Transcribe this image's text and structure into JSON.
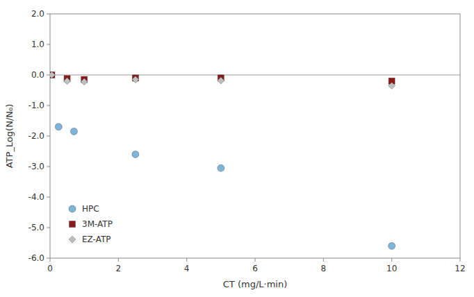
{
  "chart_data": {
    "type": "scatter",
    "xlabel": "CT (mg/L·min)",
    "ylabel": "ATP_Log(N/N₀)",
    "series": [
      {
        "name": "HPC",
        "color": "#7EB6D9",
        "marker": "circle",
        "x": [
          0.25,
          0.7,
          2.5,
          5.0,
          10.0
        ],
        "values": [
          -1.7,
          -1.85,
          -2.6,
          -3.05,
          -5.6
        ]
      },
      {
        "name": "3M-ATP",
        "color": "#8B1A1A",
        "marker": "square",
        "x": [
          0.05,
          0.5,
          1.0,
          2.5,
          5.0,
          10.0
        ],
        "values": [
          0.0,
          -0.12,
          -0.15,
          -0.1,
          -0.1,
          -0.2
        ]
      },
      {
        "name": "EZ-ATP",
        "color": "#C0C0C0",
        "marker": "diamond",
        "x": [
          0.05,
          0.5,
          1.0,
          2.5,
          5.0,
          10.0
        ],
        "values": [
          0.0,
          -0.2,
          -0.22,
          -0.15,
          -0.18,
          -0.35
        ]
      }
    ],
    "reference_line": 0.0,
    "xlim": [
      0,
      12
    ],
    "ylim": [
      -6.0,
      2.0
    ],
    "xticks": [
      0,
      2,
      4,
      6,
      8,
      10,
      12
    ],
    "yticks": [
      {
        "value": -6.0,
        "label": "-6.0"
      },
      {
        "value": -5.0,
        "label": "-5.0"
      },
      {
        "value": -4.0,
        "label": "-4.0"
      },
      {
        "value": -3.0,
        "label": "-3.0"
      },
      {
        "value": -2.0,
        "label": "-2.0"
      },
      {
        "value": -1.0,
        "label": "-1.0"
      },
      {
        "value": 0.0,
        "label": "0.0"
      },
      {
        "value": 1.0,
        "label": "1.0"
      },
      {
        "value": 2.0,
        "label": "2.0"
      }
    ],
    "grid": false,
    "legend": "lower left"
  }
}
